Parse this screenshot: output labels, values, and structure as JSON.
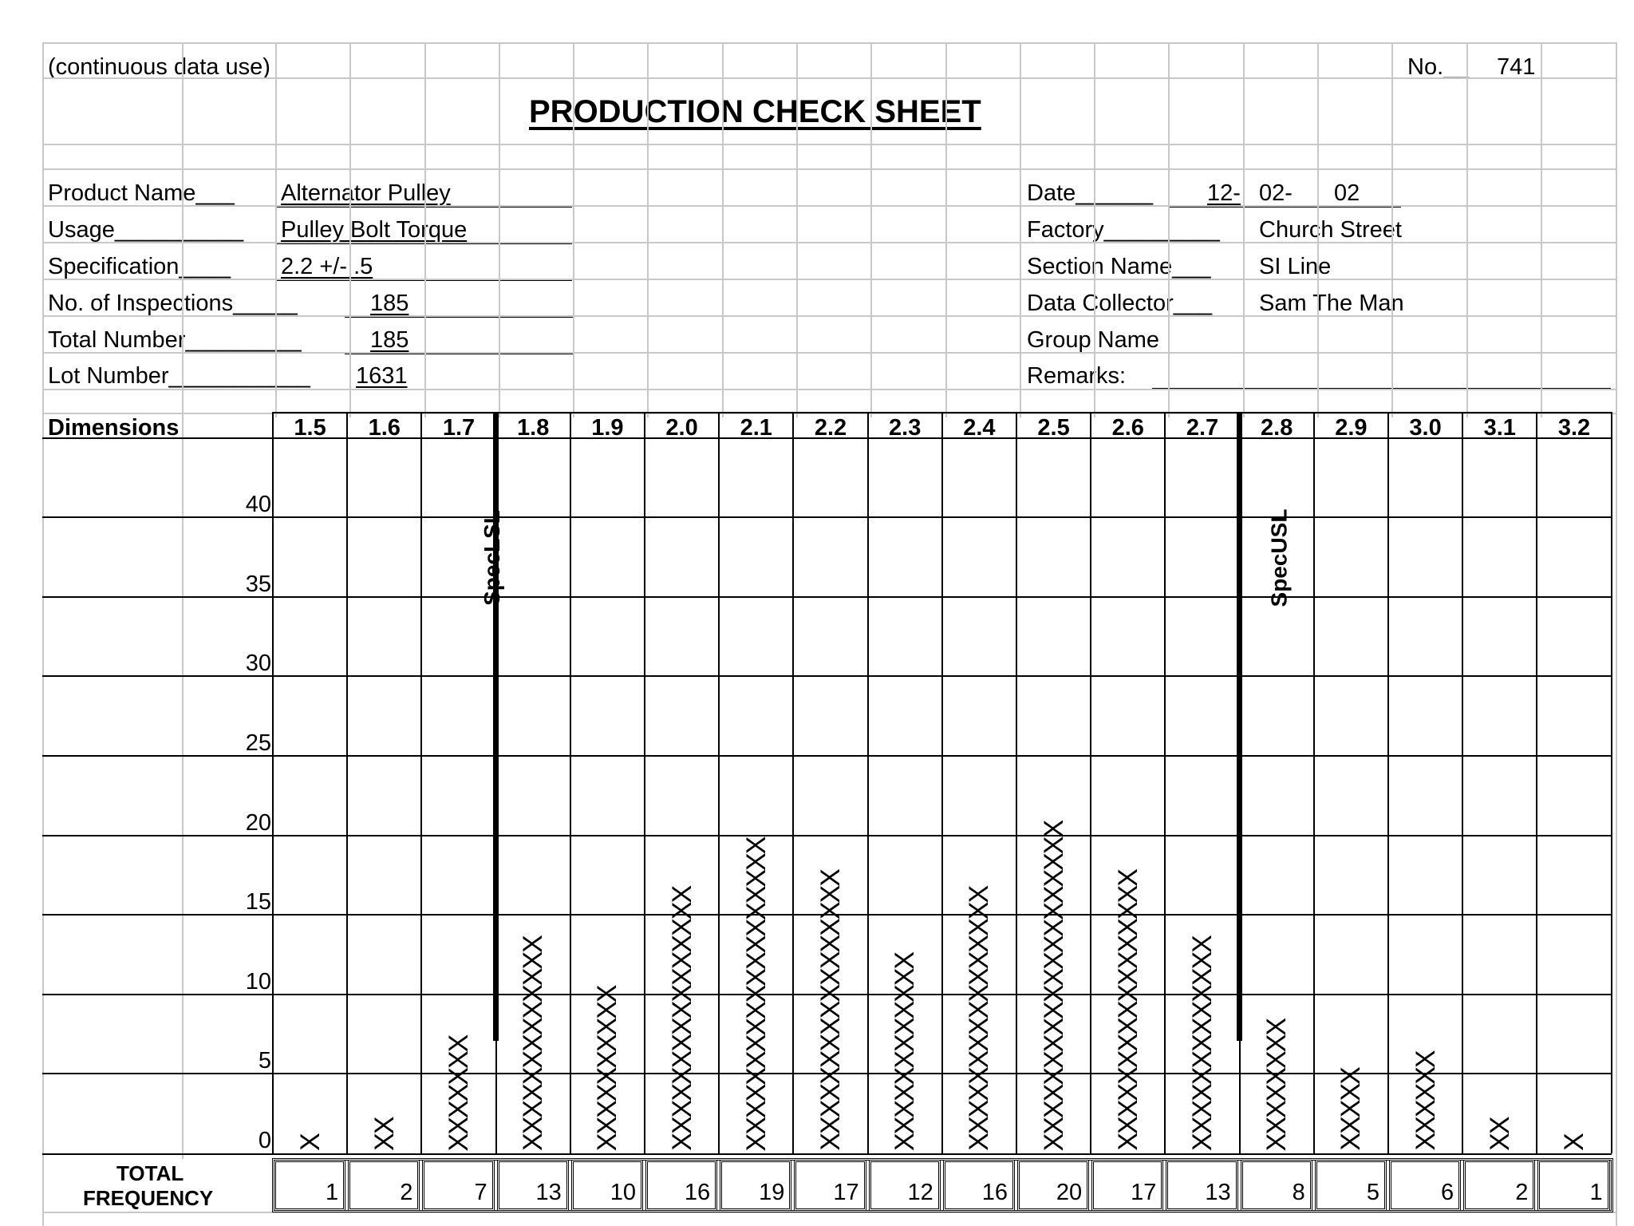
{
  "header": {
    "usage_note": "(continuous data use)",
    "no_label": "No.__",
    "no_value": "741",
    "title": "PRODUCTION CHECK SHEET"
  },
  "fields_left": [
    {
      "label": "Product Name___",
      "value": "Alternator Pulley"
    },
    {
      "label": "Usage__________",
      "value": "Pulley Bolt Torque"
    },
    {
      "label": "Specification____",
      "value": "2.2 +/- .5"
    },
    {
      "label": "No. of Inspections_____",
      "value": "185"
    },
    {
      "label": "Total Number_________",
      "value": "185"
    },
    {
      "label": "Lot Number___________",
      "value": "1631"
    }
  ],
  "fields_right": {
    "date_label": "Date______",
    "date_parts": [
      "12-",
      "02-",
      "02"
    ],
    "factory_label": "Factory_________",
    "factory_value": "Church Street",
    "section_label": "Section Name___",
    "section_value": "SI Line",
    "collector_label": "Data Collector___",
    "collector_value": "Sam The Man",
    "group_label": "Group Name",
    "remarks_label": "Remarks:"
  },
  "dimensions_label": "Dimensions",
  "y_ticks": [
    "40",
    "35",
    "30",
    "25",
    "20",
    "15",
    "10",
    "5",
    "0"
  ],
  "spec_lsl_label": "SpecLSL",
  "spec_usl_label": "SpecUSL",
  "total_label_line1": "TOTAL",
  "total_label_line2": "FREQUENCY",
  "chart_data": {
    "type": "table",
    "title": "PRODUCTION CHECK SHEET",
    "categories": [
      "1.5",
      "1.6",
      "1.7",
      "1.8",
      "1.9",
      "2.0",
      "2.1",
      "2.2",
      "2.3",
      "2.4",
      "2.5",
      "2.6",
      "2.7",
      "2.8",
      "2.9",
      "3.0",
      "3.1",
      "3.2"
    ],
    "values": [
      1,
      2,
      7,
      13,
      10,
      16,
      19,
      17,
      12,
      16,
      20,
      17,
      13,
      8,
      5,
      6,
      2,
      1
    ],
    "tally_marks": [
      "X",
      "XX",
      "XXXXXXX",
      "XXXXXXXXXXXXX",
      "XXXXXXXXXX",
      "XXXXXXXXXXXXXXXX",
      "XXXXXXXXXXXXXXXXXXX",
      "XXXXXXXXXXXXXXXXX",
      "XXXXXXXXXXXX",
      "XXXXXXXXXXXXXXXX",
      "XXXXXXXXXXXXXXXXXXXX",
      "XXXXXXXXXXXXXXXXX",
      "XXXXXXXXXXXXX",
      "XXXXXXXX",
      "XXXXX",
      "XXXXXX",
      "XX",
      "X"
    ],
    "xlabel": "Dimensions",
    "ylim": [
      0,
      40
    ],
    "spec_lsl": "1.7",
    "spec_usl": "2.7"
  }
}
